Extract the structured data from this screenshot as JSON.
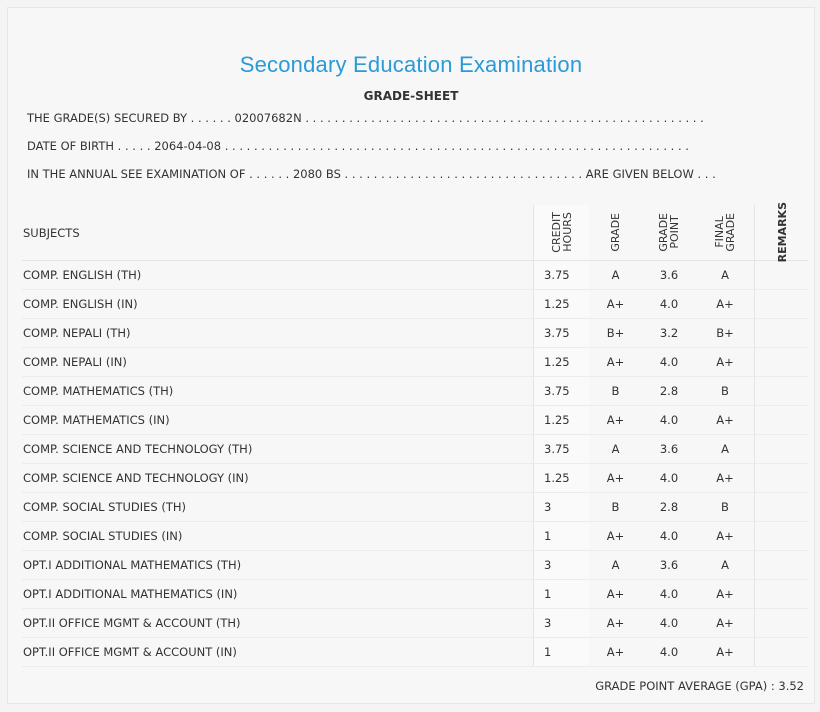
{
  "header": {
    "title": "Secondary Education Examination",
    "subtitle": "GRADE-SHEET"
  },
  "info": {
    "secured_by": "THE GRADE(S) SECURED BY . . . . . . 02007682N . . . . . . . . . . . . . . . . . . . . . . . . . . . . . . . . . . . . . . . . . . . . . . . . . . . . . . .",
    "dob": "DATE OF BIRTH . . . . . 2064-04-08 . . . . . . . . . . . . . . . . . . . . . . . . . . . . . . . . . . . . . . . . . . . . . . . . . . . . . . . . . . . . . . . .",
    "exam": "IN THE ANNUAL SEE EXAMINATION OF . . . . . . 2080 BS . . . . . . . . . . . . . . . . . . . . . . . . . . . . . . . . . ARE GIVEN BELOW . . ."
  },
  "table": {
    "headers": {
      "subjects": "SUBJECTS",
      "credit_hours": "CREDIT\nHOURS",
      "grade": "GRADE",
      "grade_point": "GRADE\nPOINT",
      "final_grade": "FINAL\nGRADE",
      "remarks": "REMARKS"
    },
    "rows": [
      {
        "subject": "COMP. ENGLISH (TH)",
        "credit": "3.75",
        "grade": "A",
        "gp": "3.6",
        "final": "A"
      },
      {
        "subject": "COMP. ENGLISH (IN)",
        "credit": "1.25",
        "grade": "A+",
        "gp": "4.0",
        "final": "A+"
      },
      {
        "subject": "COMP. NEPALI (TH)",
        "credit": "3.75",
        "grade": "B+",
        "gp": "3.2",
        "final": "B+"
      },
      {
        "subject": "COMP. NEPALI (IN)",
        "credit": "1.25",
        "grade": "A+",
        "gp": "4.0",
        "final": "A+"
      },
      {
        "subject": "COMP. MATHEMATICS (TH)",
        "credit": "3.75",
        "grade": "B",
        "gp": "2.8",
        "final": "B"
      },
      {
        "subject": "COMP. MATHEMATICS (IN)",
        "credit": "1.25",
        "grade": "A+",
        "gp": "4.0",
        "final": "A+"
      },
      {
        "subject": "COMP. SCIENCE AND TECHNOLOGY (TH)",
        "credit": "3.75",
        "grade": "A",
        "gp": "3.6",
        "final": "A"
      },
      {
        "subject": "COMP. SCIENCE AND TECHNOLOGY (IN)",
        "credit": "1.25",
        "grade": "A+",
        "gp": "4.0",
        "final": "A+"
      },
      {
        "subject": "COMP. SOCIAL STUDIES (TH)",
        "credit": "3",
        "grade": "B",
        "gp": "2.8",
        "final": "B"
      },
      {
        "subject": "COMP. SOCIAL STUDIES (IN)",
        "credit": "1",
        "grade": "A+",
        "gp": "4.0",
        "final": "A+"
      },
      {
        "subject": "OPT.I ADDITIONAL MATHEMATICS (TH)",
        "credit": "3",
        "grade": "A",
        "gp": "3.6",
        "final": "A"
      },
      {
        "subject": "OPT.I ADDITIONAL MATHEMATICS (IN)",
        "credit": "1",
        "grade": "A+",
        "gp": "4.0",
        "final": "A+"
      },
      {
        "subject": "OPT.II OFFICE MGMT & ACCOUNT (TH)",
        "credit": "3",
        "grade": "A+",
        "gp": "4.0",
        "final": "A+"
      },
      {
        "subject": "OPT.II OFFICE MGMT & ACCOUNT (IN)",
        "credit": "1",
        "grade": "A+",
        "gp": "4.0",
        "final": "A+"
      }
    ]
  },
  "footer": {
    "gpa": "GRADE POINT AVERAGE (GPA) : 3.52"
  },
  "colors": {
    "title": "#2a9ad8",
    "text": "#333333",
    "background": "#f7f7f7"
  }
}
